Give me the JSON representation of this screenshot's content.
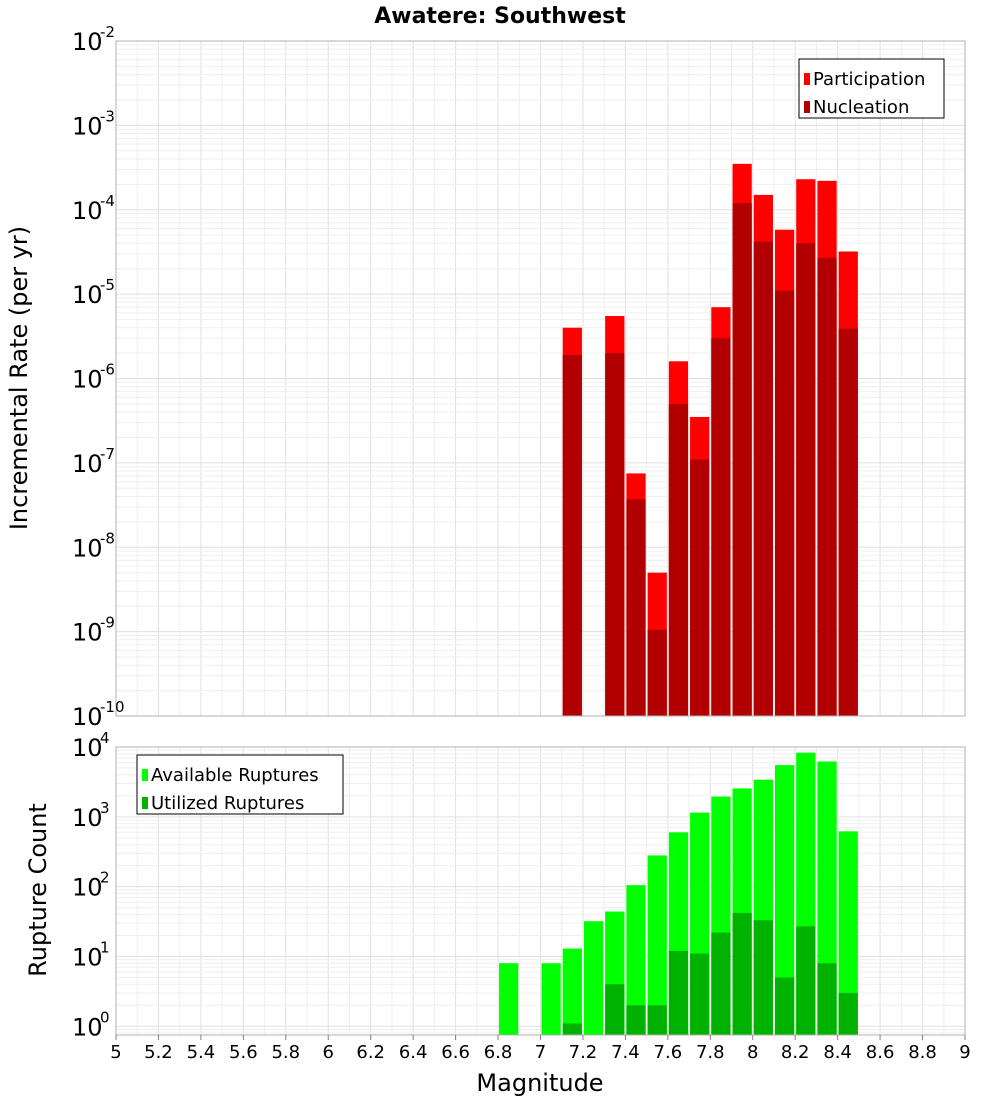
{
  "chart_data": [
    {
      "type": "bar",
      "title": "Awatere: Southwest",
      "xlabel": "",
      "ylabel": "Incremental Rate (per yr)",
      "yscale": "log",
      "ylim": [
        1e-10,
        0.01
      ],
      "xlim": [
        5,
        9
      ],
      "ytick_exponents": [
        "-10",
        "-9",
        "-8",
        "-7",
        "-6",
        "-5",
        "-4",
        "-3",
        "-2"
      ],
      "ytick_base": "10",
      "legend_position": "top-right",
      "grid": true,
      "bar_width": 0.1,
      "x": [
        7.15,
        7.35,
        7.45,
        7.55,
        7.65,
        7.75,
        7.85,
        7.95,
        8.05,
        8.15,
        8.25,
        8.35,
        8.45
      ],
      "series": [
        {
          "name": "Participation",
          "color": "#ff0000",
          "values": [
            4e-06,
            5.5e-06,
            7.5e-08,
            5e-09,
            1.6e-06,
            3.5e-07,
            7e-06,
            0.00035,
            0.00015,
            5.8e-05,
            0.00023,
            0.00022,
            3.2e-05
          ]
        },
        {
          "name": "Nucleation",
          "color": "#b20000",
          "values": [
            1.9e-06,
            2e-06,
            3.7e-08,
            1.05e-09,
            5e-07,
            1.1e-07,
            3e-06,
            0.00012,
            4.2e-05,
            1.1e-05,
            4e-05,
            2.7e-05,
            3.9e-06
          ]
        }
      ]
    },
    {
      "type": "bar",
      "title": "",
      "xlabel": "Magnitude",
      "ylabel": "Rupture Count",
      "yscale": "log",
      "ylim": [
        0.75,
        10000
      ],
      "xlim": [
        5,
        9
      ],
      "xticks": [
        "5",
        "5.2",
        "5.4",
        "5.6",
        "5.8",
        "6",
        "6.2",
        "6.4",
        "6.6",
        "6.8",
        "7",
        "7.2",
        "7.4",
        "7.6",
        "7.8",
        "8",
        "8.2",
        "8.4",
        "8.6",
        "8.8",
        "9"
      ],
      "ytick_exponents": [
        "0",
        "1",
        "2",
        "3",
        "4"
      ],
      "ytick_base": "10",
      "legend_position": "top-left",
      "grid": true,
      "bar_width": 0.1,
      "x": [
        6.85,
        7.05,
        7.15,
        7.25,
        7.35,
        7.45,
        7.55,
        7.65,
        7.75,
        7.85,
        7.95,
        8.05,
        8.15,
        8.25,
        8.35,
        8.45
      ],
      "series": [
        {
          "name": "Available Ruptures",
          "color": "#00ff00",
          "values": [
            8,
            8,
            13,
            32,
            44,
            105,
            280,
            600,
            1150,
            1950,
            2550,
            3400,
            5500,
            8300,
            6200,
            620
          ]
        },
        {
          "name": "Utilized Ruptures",
          "color": "#00b200",
          "values": [
            0,
            0,
            1.1,
            0,
            4,
            2,
            2,
            12,
            11,
            22,
            42,
            33,
            5,
            27,
            8,
            3
          ]
        }
      ]
    }
  ]
}
